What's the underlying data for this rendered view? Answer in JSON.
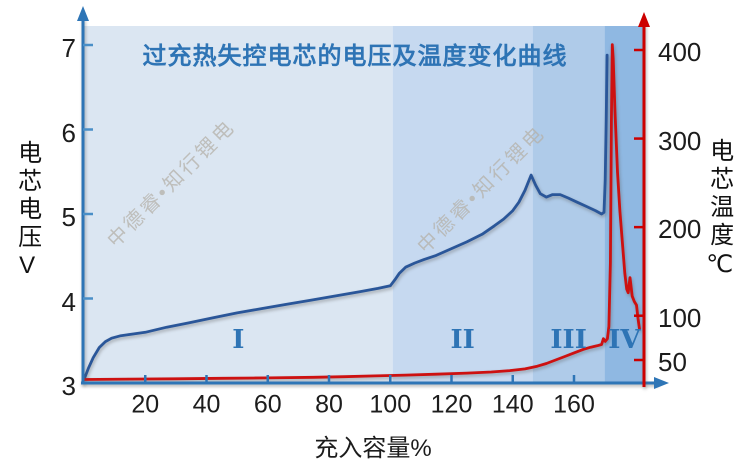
{
  "watermark": "中德睿•知行锂电",
  "colors": {
    "title": "#2E74B5",
    "axis_blue": "#2E75B6",
    "axis_red": "#CC0000",
    "voltage_line": "#2A5699",
    "temperature_line": "#CD1111",
    "region_label": "#2E74B5",
    "watermark": "#B5B1A9",
    "tick_label": "#1C1C1C"
  },
  "chart_data": {
    "type": "line",
    "title": "过充热失控电芯的电压及温度变化曲线",
    "xlabel": "充入容量%",
    "ylabel_left": "电芯电压V",
    "ylabel_right": "电芯温度℃",
    "x_ticks": [
      20,
      40,
      60,
      80,
      100,
      120,
      140,
      160
    ],
    "xlim": [
      0,
      182.9
    ],
    "y_left": {
      "ticks": [
        3,
        4,
        5,
        6,
        7
      ],
      "lim": [
        3,
        7.2
      ],
      "unit": "V"
    },
    "y_right": {
      "ticks": [
        50,
        100,
        200,
        300,
        400
      ],
      "lim": [
        25,
        425
      ],
      "unit": "℃"
    },
    "grid": false,
    "legend": "none",
    "regions": [
      {
        "label": "I",
        "from": 0,
        "to": 100.8,
        "color": "#DBE6F2"
      },
      {
        "label": "II",
        "from": 100.8,
        "to": 146.5,
        "color": "#C6D9F0"
      },
      {
        "label": "III",
        "from": 146.5,
        "to": 170,
        "color": "#AFCBE9"
      },
      {
        "label": "IV",
        "from": 170,
        "to": 182.9,
        "color": "#8FB8E2"
      }
    ],
    "series": [
      {
        "name": "电芯电压",
        "axis": "left",
        "color": "#2A5699",
        "points": [
          [
            0,
            3.04
          ],
          [
            1.5,
            3.18
          ],
          [
            3,
            3.3
          ],
          [
            5,
            3.42
          ],
          [
            7,
            3.49
          ],
          [
            9,
            3.53
          ],
          [
            12,
            3.56
          ],
          [
            16,
            3.58
          ],
          [
            20,
            3.6
          ],
          [
            27,
            3.66
          ],
          [
            34,
            3.71
          ],
          [
            42,
            3.77
          ],
          [
            50,
            3.83
          ],
          [
            58,
            3.88
          ],
          [
            66,
            3.93
          ],
          [
            74,
            3.98
          ],
          [
            82,
            4.03
          ],
          [
            90,
            4.08
          ],
          [
            96,
            4.12
          ],
          [
            100,
            4.15
          ],
          [
            101.5,
            4.22
          ],
          [
            103,
            4.3
          ],
          [
            105,
            4.37
          ],
          [
            108,
            4.42
          ],
          [
            111,
            4.46
          ],
          [
            115,
            4.51
          ],
          [
            120,
            4.59
          ],
          [
            125,
            4.67
          ],
          [
            130,
            4.76
          ],
          [
            134,
            4.86
          ],
          [
            137,
            4.94
          ],
          [
            140,
            5.04
          ],
          [
            142,
            5.14
          ],
          [
            144,
            5.28
          ],
          [
            146,
            5.46
          ],
          [
            147.5,
            5.34
          ],
          [
            149,
            5.24
          ],
          [
            151,
            5.2
          ],
          [
            153,
            5.23
          ],
          [
            155.5,
            5.23
          ],
          [
            158,
            5.19
          ],
          [
            161,
            5.14
          ],
          [
            164,
            5.09
          ],
          [
            167,
            5.04
          ],
          [
            169,
            5.0
          ],
          [
            169.8,
            5.02
          ],
          [
            170.2,
            5.4
          ],
          [
            170.5,
            6.1
          ],
          [
            170.8,
            6.88
          ]
        ]
      },
      {
        "name": "电芯温度",
        "axis": "right",
        "color": "#CD1111",
        "points": [
          [
            0,
            28
          ],
          [
            15,
            28.4
          ],
          [
            30,
            28.8
          ],
          [
            45,
            29.3
          ],
          [
            60,
            29.8
          ],
          [
            75,
            30.5
          ],
          [
            85,
            31.2
          ],
          [
            95,
            32
          ],
          [
            105,
            33
          ],
          [
            115,
            34
          ],
          [
            125,
            35.2
          ],
          [
            133,
            36.5
          ],
          [
            139,
            38
          ],
          [
            144,
            40
          ],
          [
            148,
            43
          ],
          [
            151,
            46
          ],
          [
            154,
            50
          ],
          [
            157,
            54
          ],
          [
            160,
            58
          ],
          [
            163,
            62
          ],
          [
            165.5,
            64.5
          ],
          [
            167.5,
            66
          ],
          [
            169,
            67.5
          ],
          [
            169.6,
            74
          ],
          [
            170.2,
            71
          ],
          [
            170.9,
            74
          ],
          [
            171.4,
            88
          ],
          [
            171.9,
            160
          ],
          [
            172.2,
            320
          ],
          [
            172.5,
            406
          ],
          [
            172.8,
            390
          ],
          [
            173.4,
            330
          ],
          [
            174.2,
            262
          ],
          [
            175,
            218
          ],
          [
            175.9,
            178
          ],
          [
            176.6,
            148
          ],
          [
            177.2,
            130
          ],
          [
            177.7,
            126
          ],
          [
            178.3,
            143
          ],
          [
            179,
            122
          ],
          [
            179.7,
            116
          ],
          [
            180.4,
            112
          ],
          [
            180.9,
            97
          ],
          [
            181.4,
            85
          ]
        ]
      }
    ]
  }
}
